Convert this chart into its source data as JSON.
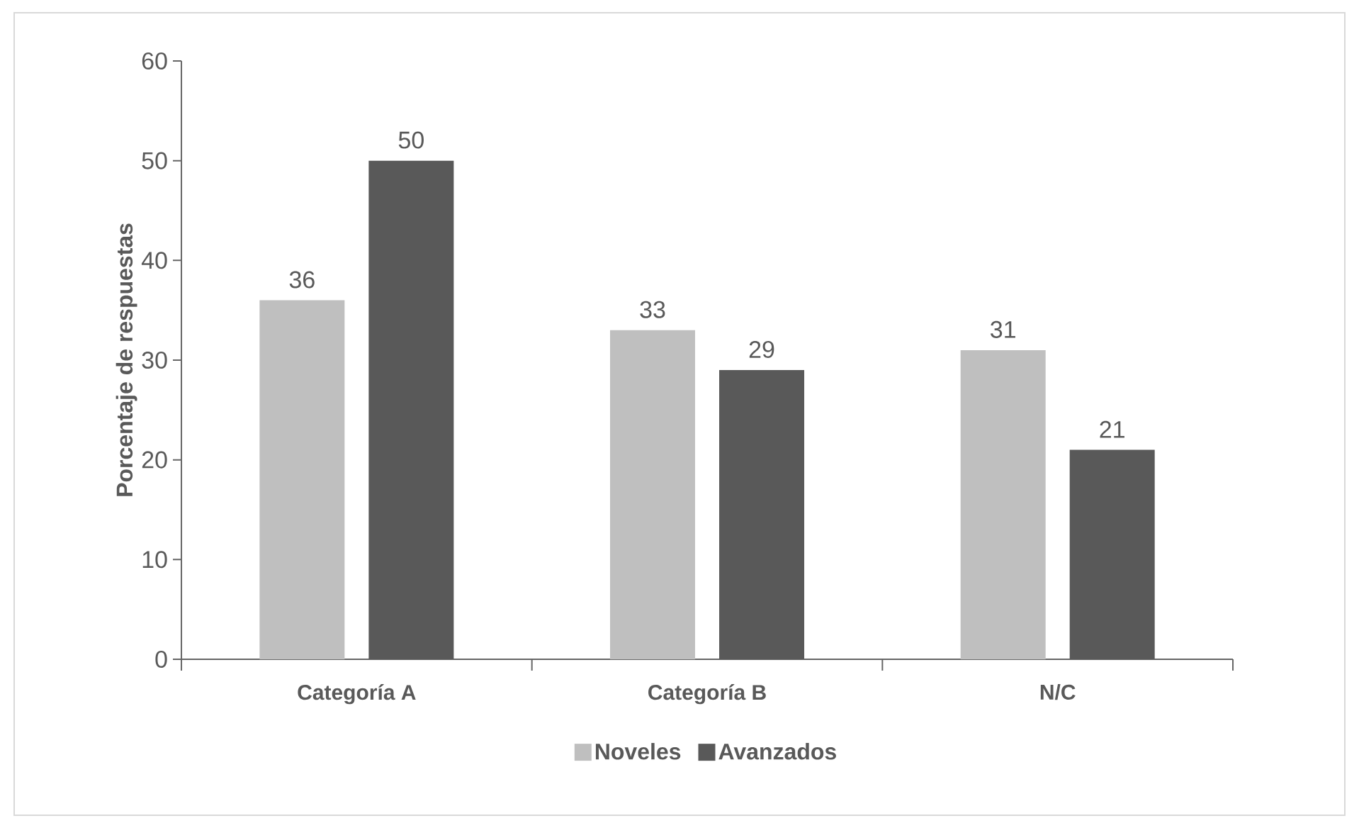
{
  "chart_data": {
    "type": "bar",
    "ylabel": "Porcentaje de respuestas",
    "categories": [
      "Categoría A",
      "Categoría B",
      "N/C"
    ],
    "series": [
      {
        "name": "Noveles",
        "color": "#bfbfbf",
        "values": [
          36,
          33,
          31
        ]
      },
      {
        "name": "Avanzados",
        "color": "#595959",
        "values": [
          50,
          29,
          21
        ]
      }
    ],
    "ylim": [
      0,
      60
    ],
    "yticks": [
      0,
      10,
      20,
      30,
      40,
      50,
      60
    ],
    "grid": false,
    "legend": "bottom",
    "data_labels": true
  }
}
